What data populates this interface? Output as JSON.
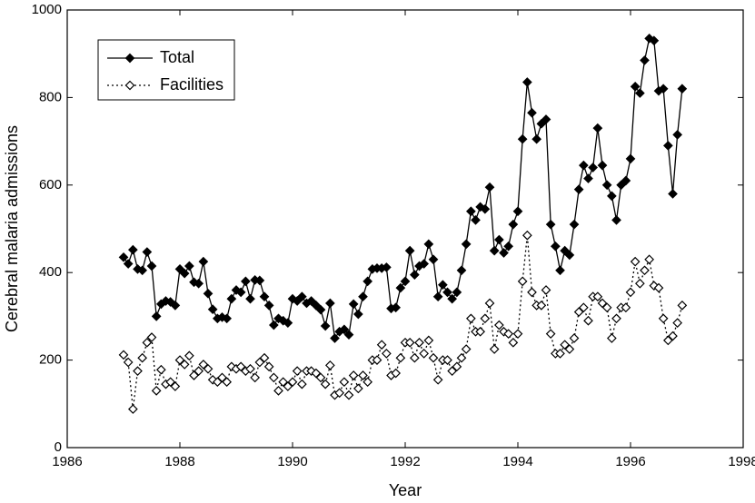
{
  "chart_data": {
    "type": "line",
    "xlabel": "Year",
    "ylabel": "Cerebral malaria admissions",
    "xlim": [
      1986,
      1998
    ],
    "xticks": [
      1986,
      1988,
      1990,
      1992,
      1994,
      1996,
      1998
    ],
    "ylim": [
      0,
      1000
    ],
    "yticks": [
      0,
      200,
      400,
      600,
      800,
      1000
    ],
    "grid": false,
    "legend": "upper left",
    "x": [
      1987,
      1987.083,
      1987.167,
      1987.25,
      1987.333,
      1987.417,
      1987.5,
      1987.583,
      1987.667,
      1987.75,
      1987.833,
      1987.917,
      1988,
      1988.083,
      1988.167,
      1988.25,
      1988.333,
      1988.417,
      1988.5,
      1988.583,
      1988.667,
      1988.75,
      1988.833,
      1988.917,
      1989,
      1989.083,
      1989.167,
      1989.25,
      1989.333,
      1989.417,
      1989.5,
      1989.583,
      1989.667,
      1989.75,
      1989.833,
      1989.917,
      1990,
      1990.083,
      1990.167,
      1990.25,
      1990.333,
      1990.417,
      1990.5,
      1990.583,
      1990.667,
      1990.75,
      1990.833,
      1990.917,
      1991,
      1991.083,
      1991.167,
      1991.25,
      1991.333,
      1991.417,
      1991.5,
      1991.583,
      1991.667,
      1991.75,
      1991.833,
      1991.917,
      1992,
      1992.083,
      1992.167,
      1992.25,
      1992.333,
      1992.417,
      1992.5,
      1992.583,
      1992.667,
      1992.75,
      1992.833,
      1992.917,
      1993,
      1993.083,
      1993.167,
      1993.25,
      1993.333,
      1993.417,
      1993.5,
      1993.583,
      1993.667,
      1993.75,
      1993.833,
      1993.917,
      1994,
      1994.083,
      1994.167,
      1994.25,
      1994.333,
      1994.417,
      1994.5,
      1994.583,
      1994.667,
      1994.75,
      1994.833,
      1994.917,
      1995,
      1995.083,
      1995.167,
      1995.25,
      1995.333,
      1995.417,
      1995.5,
      1995.583,
      1995.667,
      1995.75,
      1995.833,
      1995.917,
      1996,
      1996.083,
      1996.167,
      1996.25,
      1996.333,
      1996.417,
      1996.5,
      1996.583,
      1996.667,
      1996.75,
      1996.833,
      1996.917
    ],
    "series": [
      {
        "name": "Total",
        "color": "#000000",
        "line_style": "solid",
        "marker": "filled",
        "values": [
          435,
          420,
          452,
          408,
          405,
          447,
          415,
          300,
          328,
          335,
          333,
          325,
          408,
          398,
          415,
          378,
          375,
          425,
          352,
          316,
          295,
          298,
          295,
          340,
          360,
          355,
          380,
          340,
          383,
          382,
          345,
          325,
          280,
          295,
          290,
          285,
          340,
          335,
          345,
          330,
          335,
          325,
          315,
          278,
          330,
          250,
          265,
          270,
          258,
          328,
          305,
          345,
          380,
          408,
          410,
          410,
          412,
          318,
          320,
          365,
          380,
          450,
          395,
          415,
          420,
          465,
          430,
          345,
          372,
          355,
          340,
          355,
          405,
          465,
          540,
          520,
          550,
          545,
          595,
          450,
          475,
          445,
          460,
          510,
          540,
          705,
          835,
          765,
          705,
          740,
          750,
          510,
          460,
          405,
          450,
          440,
          510,
          590,
          645,
          615,
          640,
          730,
          645,
          600,
          575,
          520,
          600,
          610,
          660,
          825,
          810,
          885,
          935,
          930,
          815,
          820,
          690,
          580,
          715,
          820
        ]
      },
      {
        "name": "Facilities",
        "color": "#000000",
        "line_style": "dotted",
        "marker": "open",
        "values": [
          212,
          195,
          88,
          175,
          205,
          240,
          252,
          130,
          178,
          145,
          150,
          140,
          200,
          190,
          210,
          165,
          175,
          190,
          180,
          155,
          150,
          160,
          150,
          185,
          180,
          185,
          175,
          180,
          160,
          195,
          205,
          185,
          160,
          130,
          150,
          140,
          150,
          175,
          145,
          175,
          175,
          170,
          160,
          145,
          188,
          120,
          125,
          150,
          120,
          165,
          135,
          165,
          150,
          200,
          200,
          235,
          215,
          165,
          170,
          205,
          240,
          240,
          205,
          240,
          215,
          245,
          205,
          155,
          200,
          200,
          175,
          185,
          205,
          225,
          295,
          265,
          265,
          295,
          330,
          225,
          280,
          265,
          260,
          240,
          260,
          380,
          485,
          355,
          325,
          325,
          360,
          260,
          215,
          215,
          235,
          225,
          250,
          310,
          320,
          290,
          345,
          345,
          330,
          320,
          250,
          295,
          320,
          320,
          355,
          425,
          375,
          405,
          430,
          370,
          365,
          295,
          245,
          255,
          285,
          325
        ]
      }
    ]
  }
}
